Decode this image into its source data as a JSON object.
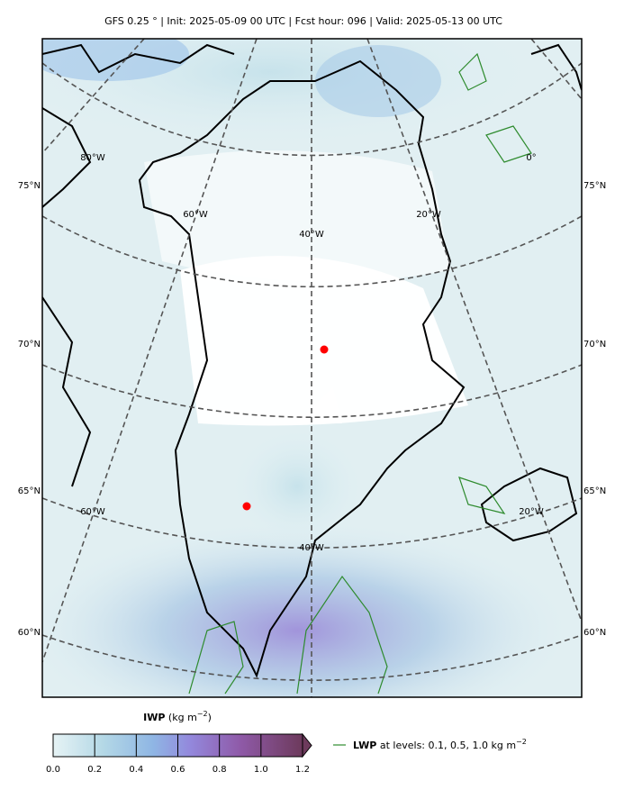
{
  "header": {
    "title": "GFS 0.25 ° | Init: 2025-05-09 00 UTC | Fcst hour: 096 | Valid: 2025-05-13 00 UTC"
  },
  "map": {
    "lat_labels_left": [
      "75°N",
      "70°N",
      "65°N",
      "60°N"
    ],
    "lat_labels_right": [
      "75°N",
      "70°N",
      "65°N",
      "60°N"
    ],
    "lon_labels": [
      "80°W",
      "0°",
      "60°W",
      "20°W",
      "40°W",
      "60°W",
      "20°W",
      "40°W"
    ]
  },
  "colorbar": {
    "title": "IWP",
    "units": "(kg m",
    "units_exp": "−2",
    "units_close": ")",
    "ticks": [
      "0.0",
      "0.2",
      "0.4",
      "0.6",
      "0.8",
      "1.0",
      "1.2"
    ]
  },
  "legend": {
    "name": "LWP",
    "text": "at levels: 0.1, 0.5, 1.0  kg m",
    "exp": "−2"
  }
}
